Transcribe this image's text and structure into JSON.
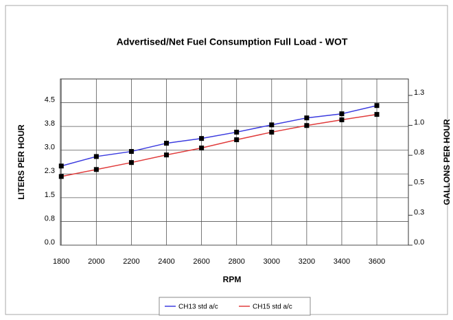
{
  "chart_data": {
    "type": "line",
    "title": "Advertised/Net Fuel Consumption Full Load - WOT",
    "xlabel": "RPM",
    "ylabel": "LITERS PER HOUR",
    "y2label": "GALLONS PER HOUR",
    "x": [
      1800,
      2000,
      2200,
      2400,
      2600,
      2800,
      3000,
      3200,
      3400,
      3600
    ],
    "series": [
      {
        "name": "CH13 std a/c",
        "color": "#3a3adf",
        "marker_color": "#000000",
        "values": [
          2.5,
          2.8,
          2.96,
          3.22,
          3.37,
          3.57,
          3.8,
          4.02,
          4.15,
          4.41
        ]
      },
      {
        "name": "CH15 std a/c",
        "color": "#e03a3a",
        "marker_color": "#000000",
        "values": [
          2.17,
          2.39,
          2.61,
          2.85,
          3.07,
          3.33,
          3.57,
          3.78,
          3.96,
          4.13
        ]
      }
    ],
    "xlim": [
      1795,
      3780
    ],
    "xticks": [
      1800,
      2000,
      2200,
      2400,
      2600,
      2800,
      3000,
      3200,
      3400,
      3600
    ],
    "ylim": [
      0,
      5.25
    ],
    "yticks": [
      {
        "value": 0,
        "label": "0.0"
      },
      {
        "value": 0.75,
        "label": "0.8"
      },
      1.5,
      {
        "value": 2.25,
        "label": "2.3"
      },
      {
        "value": 3,
        "label": "3.0"
      },
      {
        "value": 3.75,
        "label": "3.8"
      },
      4.5
    ],
    "y2lim": [
      0,
      1.387
    ],
    "y2ticks": [
      {
        "value": 0,
        "label": "0.0"
      },
      {
        "value": 0.25,
        "label": "0.3"
      },
      0.5,
      {
        "value": 0.75,
        "label": "0.8"
      },
      {
        "value": 1,
        "label": "1.0"
      },
      {
        "value": 1.25,
        "label": "1.3"
      }
    ],
    "grid": true,
    "legend": "bottom"
  }
}
